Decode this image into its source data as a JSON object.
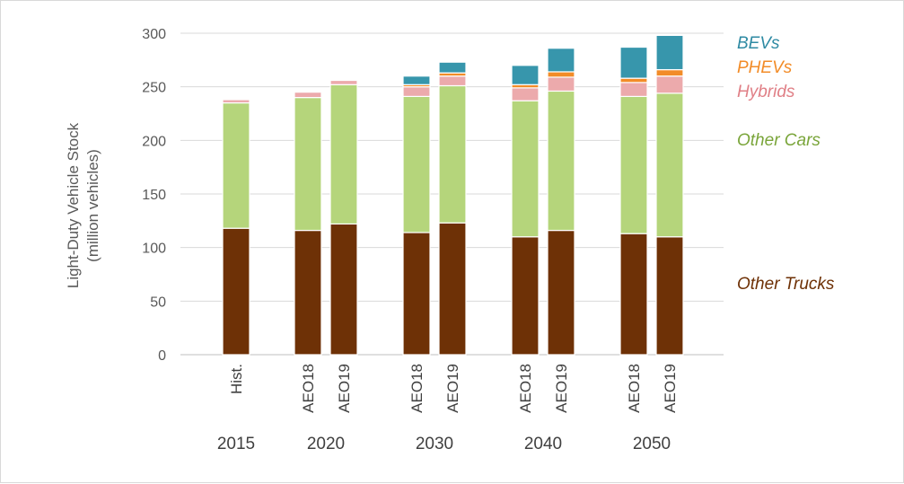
{
  "chart_data": {
    "type": "bar",
    "stacked": true,
    "ylabel": "Light-Duty Vehicle Stock",
    "ylabel_unit": "(million vehicles)",
    "ylim": [
      0,
      300
    ],
    "yticks": [
      0,
      50,
      100,
      150,
      200,
      250,
      300
    ],
    "grid": true,
    "legend_position": "right",
    "groups": [
      {
        "year": "2015",
        "bars": [
          {
            "label": "Hist.",
            "values": [
              118,
              117,
              0,
              3,
              0,
              0
            ]
          }
        ]
      },
      {
        "year": "2020",
        "bars": [
          {
            "label": "AEO18",
            "values": [
              116,
              124,
              0,
              5,
              0,
              0
            ]
          },
          {
            "label": "AEO19",
            "values": [
              122,
              130,
              0,
              4,
              0,
              0
            ]
          }
        ]
      },
      {
        "year": "2030",
        "bars": [
          {
            "label": "AEO18",
            "values": [
              114,
              127,
              0,
              9,
              2,
              8
            ]
          },
          {
            "label": "AEO19",
            "values": [
              123,
              128,
              0,
              9,
              3,
              10
            ]
          }
        ]
      },
      {
        "year": "2040",
        "bars": [
          {
            "label": "AEO18",
            "values": [
              110,
              127,
              0,
              12,
              3,
              18
            ]
          },
          {
            "label": "AEO19",
            "values": [
              116,
              130,
              0,
              13,
              5,
              22
            ]
          }
        ]
      },
      {
        "year": "2050",
        "bars": [
          {
            "label": "AEO18",
            "values": [
              113,
              128,
              0,
              13,
              4,
              29
            ]
          },
          {
            "label": "AEO19",
            "values": [
              110,
              134,
              0,
              16,
              6,
              32
            ]
          }
        ]
      }
    ],
    "series": [
      {
        "name": "Other Trucks",
        "color": "#6e3106",
        "label_color": "#6e3106"
      },
      {
        "name": "Other Cars",
        "color": "#b5d57b",
        "label_color": "#7aa53a"
      },
      {
        "name": "",
        "color": "#ffffff",
        "label_color": "#ffffff"
      },
      {
        "name": "Hybrids",
        "color": "#ecaaac",
        "label_color": "#e07f86"
      },
      {
        "name": "PHEVs",
        "color": "#f28c28",
        "label_color": "#f28c28"
      },
      {
        "name": "BEVs",
        "color": "#3796ac",
        "label_color": "#2e8aa3"
      }
    ]
  }
}
